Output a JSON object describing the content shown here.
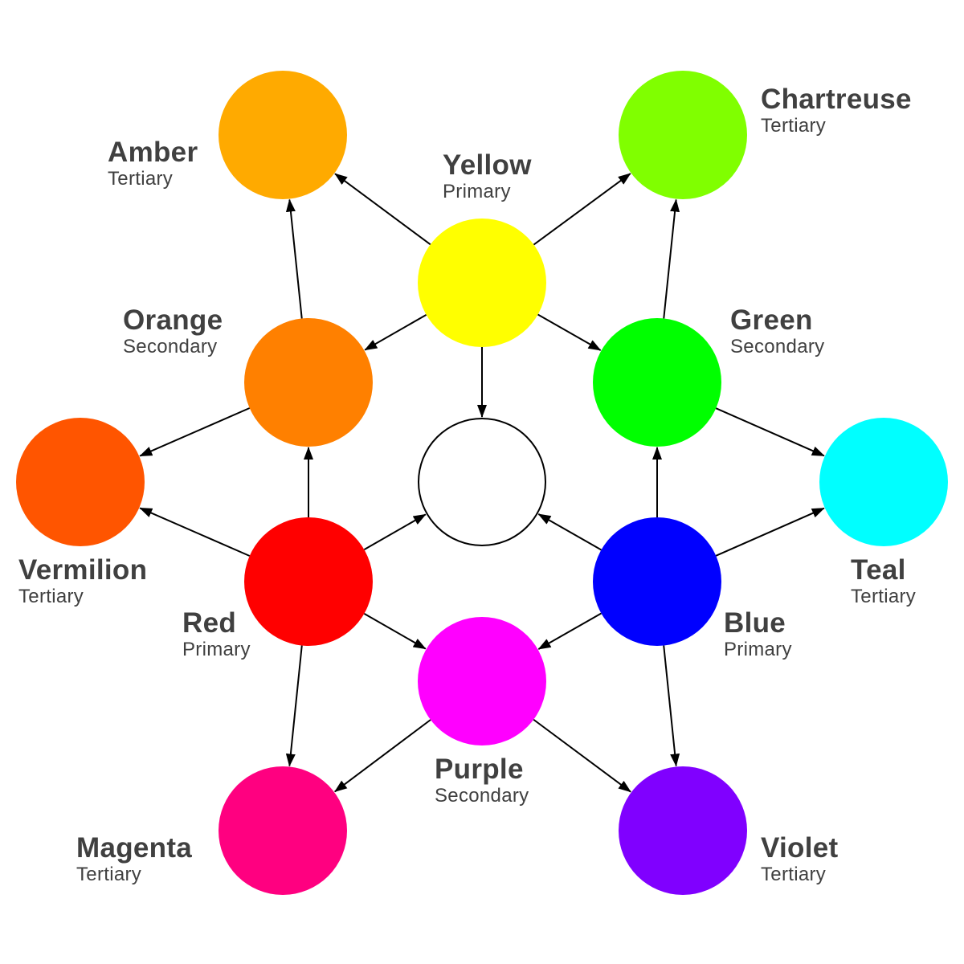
{
  "nodes": [
    {
      "id": "yellow",
      "name": "Yellow",
      "role": "Primary",
      "color": "#ffff00"
    },
    {
      "id": "red",
      "name": "Red",
      "role": "Primary",
      "color": "#ff0000"
    },
    {
      "id": "blue",
      "name": "Blue",
      "role": "Primary",
      "color": "#0000ff"
    },
    {
      "id": "orange",
      "name": "Orange",
      "role": "Secondary",
      "color": "#ff8000"
    },
    {
      "id": "green",
      "name": "Green",
      "role": "Secondary",
      "color": "#00ff00"
    },
    {
      "id": "purple",
      "name": "Purple",
      "role": "Secondary",
      "color": "#ff00ff"
    },
    {
      "id": "amber",
      "name": "Amber",
      "role": "Tertiary",
      "color": "#ffaa00"
    },
    {
      "id": "chartreuse",
      "name": "Chartreuse",
      "role": "Tertiary",
      "color": "#80ff00"
    },
    {
      "id": "vermilion",
      "name": "Vermilion",
      "role": "Tertiary",
      "color": "#ff5500"
    },
    {
      "id": "teal",
      "name": "Teal",
      "role": "Tertiary",
      "color": "#00ffff"
    },
    {
      "id": "magenta",
      "name": "Magenta",
      "role": "Tertiary",
      "color": "#ff0080"
    },
    {
      "id": "violet",
      "name": "Violet",
      "role": "Tertiary",
      "color": "#8000ff"
    },
    {
      "id": "center",
      "name": "",
      "role": "",
      "color": "#ffffff"
    }
  ],
  "edges": [
    [
      "yellow",
      "amber"
    ],
    [
      "yellow",
      "chartreuse"
    ],
    [
      "yellow",
      "orange"
    ],
    [
      "yellow",
      "green"
    ],
    [
      "yellow",
      "center"
    ],
    [
      "red",
      "orange"
    ],
    [
      "red",
      "vermilion"
    ],
    [
      "red",
      "purple"
    ],
    [
      "red",
      "magenta"
    ],
    [
      "red",
      "center"
    ],
    [
      "blue",
      "green"
    ],
    [
      "blue",
      "teal"
    ],
    [
      "blue",
      "purple"
    ],
    [
      "blue",
      "violet"
    ],
    [
      "blue",
      "center"
    ],
    [
      "orange",
      "amber"
    ],
    [
      "orange",
      "vermilion"
    ],
    [
      "green",
      "chartreuse"
    ],
    [
      "green",
      "teal"
    ],
    [
      "purple",
      "magenta"
    ],
    [
      "purple",
      "violet"
    ]
  ],
  "style": {
    "edge_color": "#000000",
    "label_color": "#404040",
    "center_stroke": "#000000"
  }
}
